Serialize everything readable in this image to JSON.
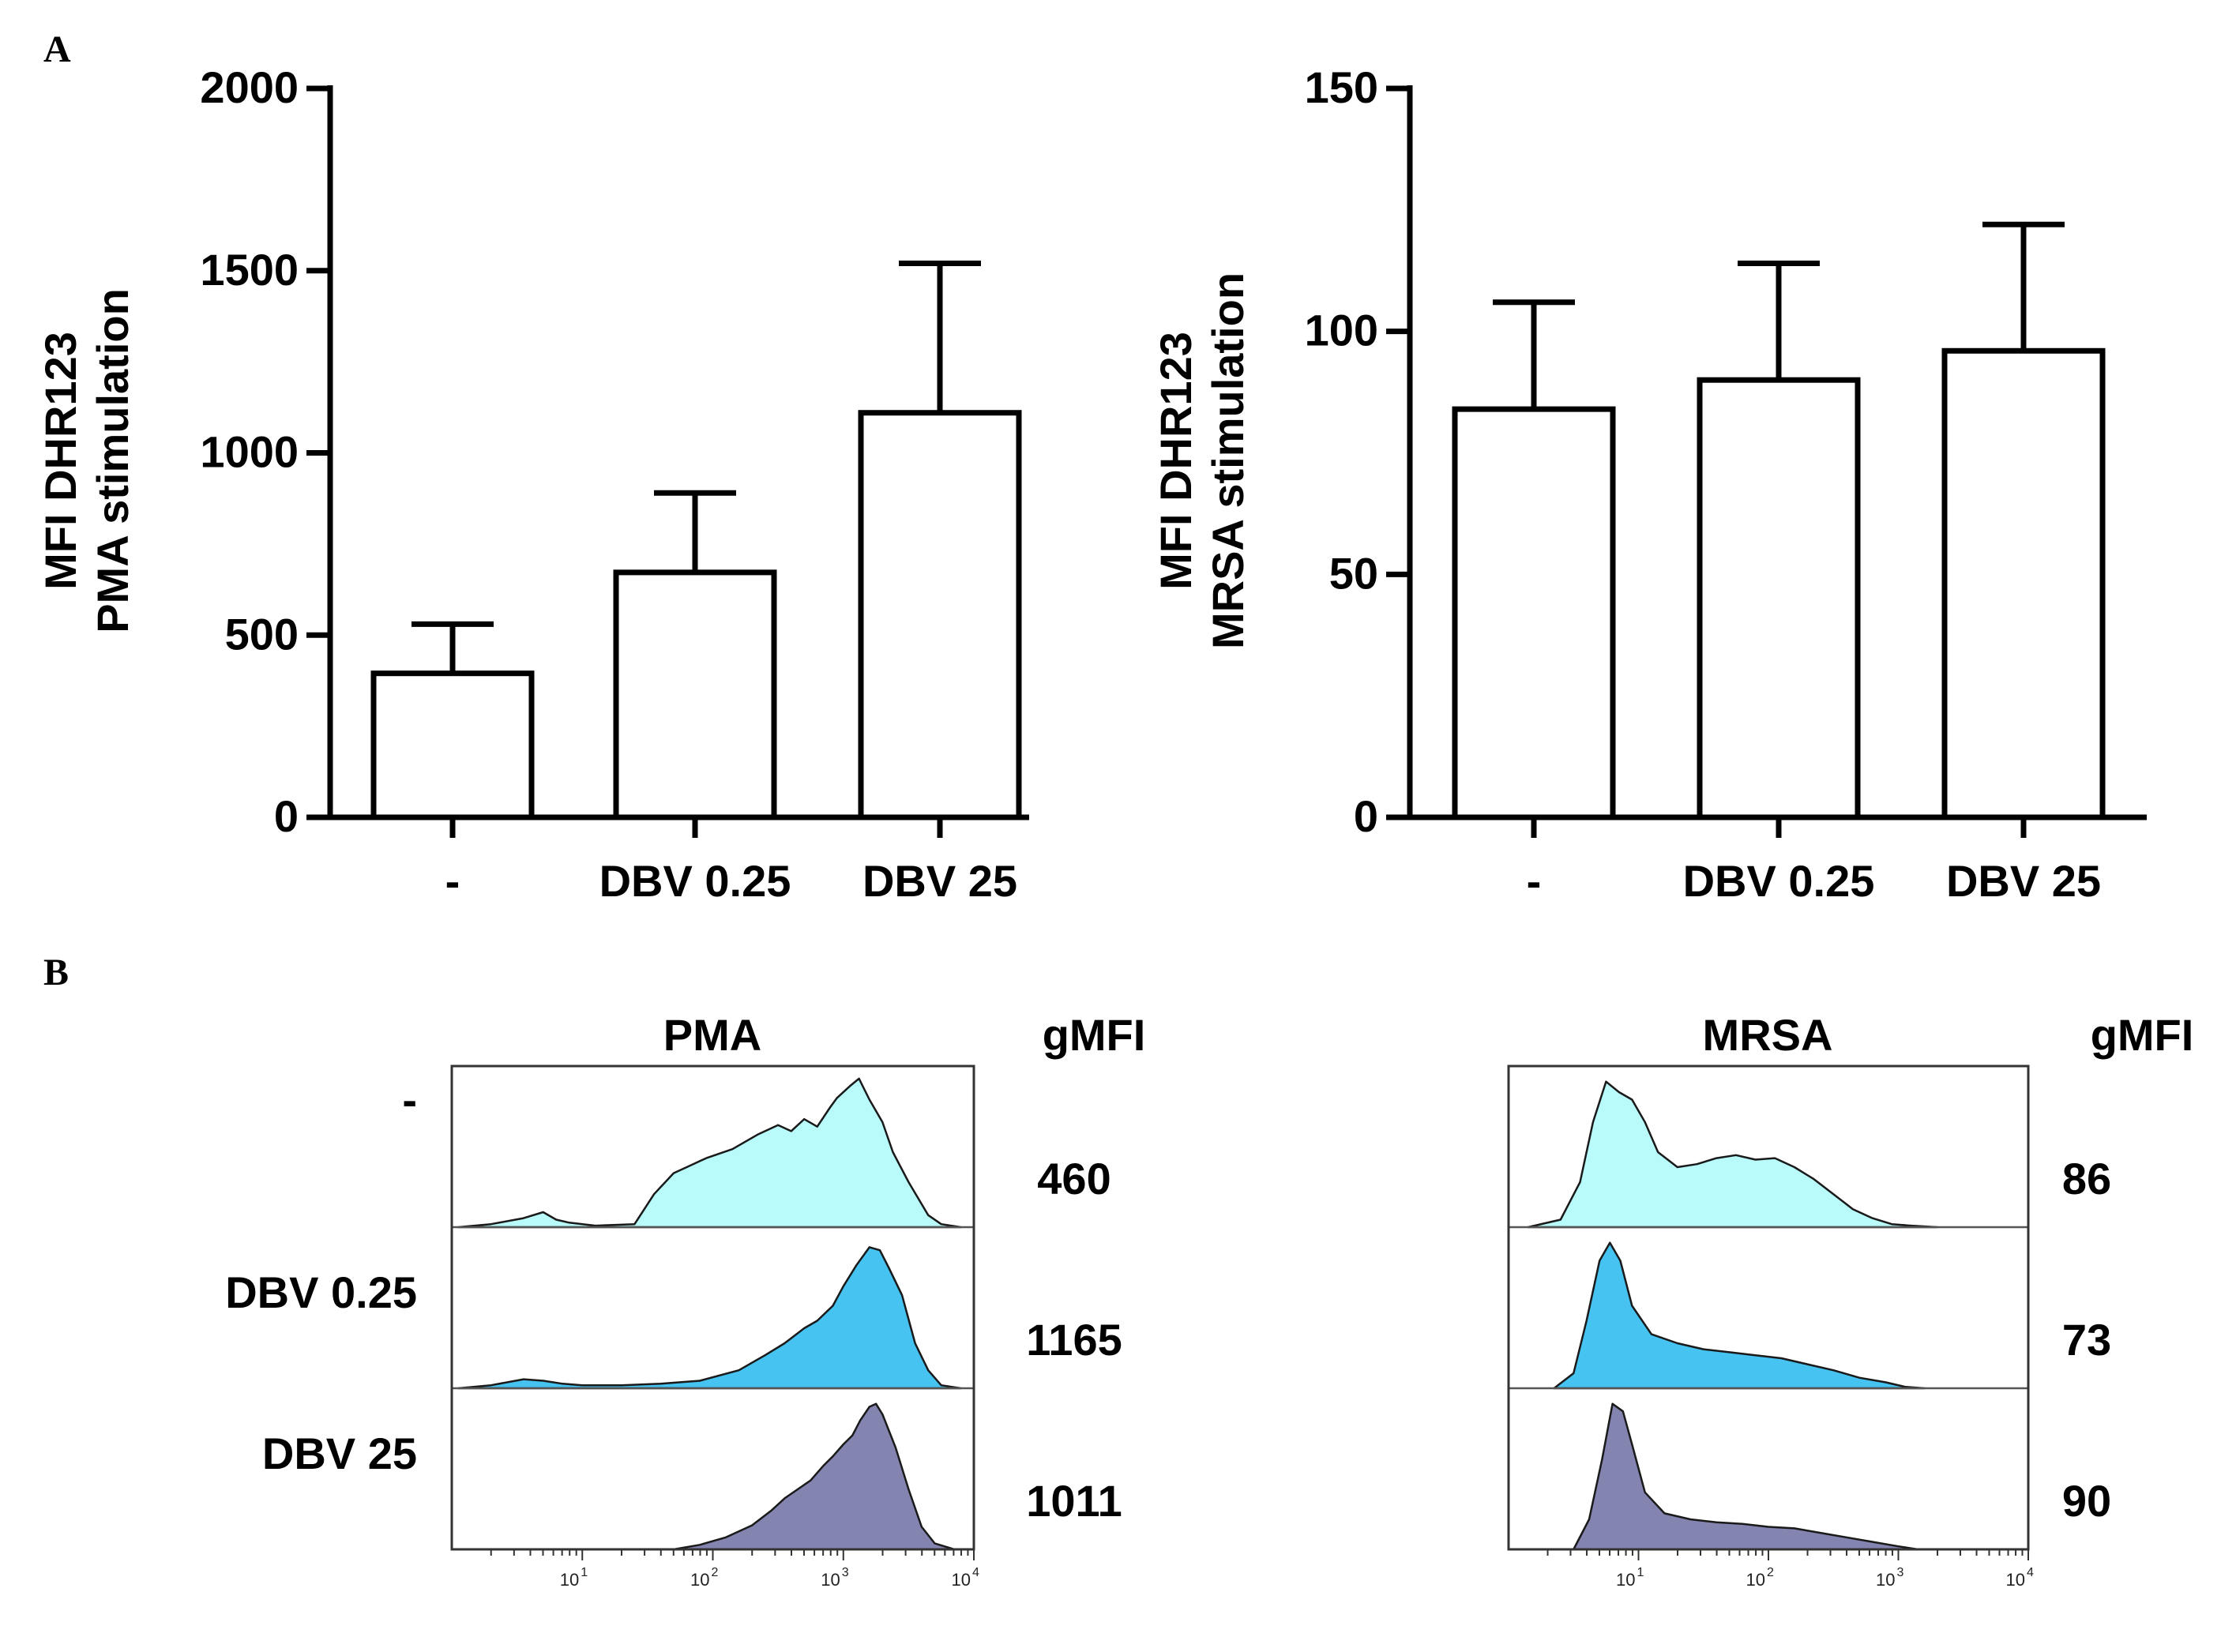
{
  "panels": {
    "a": "A",
    "b": "B"
  },
  "chart_data": [
    {
      "id": "A-left",
      "type": "bar",
      "title": "",
      "xlabel": "",
      "ylabel": [
        "MFI DHR123",
        "PMA stimulation"
      ],
      "categories": [
        "-",
        "DBV 0.25",
        "DBV 25"
      ],
      "values": [
        395,
        672,
        1110
      ],
      "errors": [
        135,
        218,
        410
      ],
      "ylim": [
        0,
        2000
      ],
      "yticks": [
        0,
        500,
        1000,
        1500,
        2000
      ],
      "yticklabels": [
        "0",
        "500",
        "1000",
        "1500",
        "2000"
      ]
    },
    {
      "id": "A-right",
      "type": "bar",
      "title": "",
      "xlabel": "",
      "ylabel": [
        "MFI DHR123",
        "MRSA stimulation"
      ],
      "categories": [
        "-",
        "DBV 0.25",
        "DBV 25"
      ],
      "values": [
        84,
        90,
        96
      ],
      "errors": [
        22,
        24,
        26
      ],
      "ylim": [
        0,
        150
      ],
      "yticks": [
        0,
        50,
        100,
        150
      ],
      "yticklabels": [
        "0",
        "50",
        "100",
        "150"
      ]
    },
    {
      "id": "B-left",
      "type": "area",
      "title": "PMA",
      "value_header": "gMFI",
      "xscale": "log",
      "xlim": [
        1,
        10000
      ],
      "xticks": [
        10,
        100,
        1000,
        10000
      ],
      "xticklabels": [
        [
          "10",
          "1"
        ],
        [
          "10",
          "2"
        ],
        [
          "10",
          "3"
        ],
        [
          "10",
          "4"
        ]
      ],
      "rows": [
        {
          "label": "-",
          "value": "460",
          "fill": "#b9fbfb",
          "log_x": [
            0.05,
            0.3,
            0.55,
            0.7,
            0.8,
            0.9,
            1.1,
            1.4,
            1.55,
            1.7,
            1.8,
            1.95,
            2.15,
            2.35,
            2.5,
            2.6,
            2.7,
            2.8,
            2.9,
            2.95,
            3.05,
            3.12,
            3.2,
            3.3,
            3.38,
            3.5,
            3.65,
            3.75,
            3.9
          ],
          "y": [
            0,
            0.02,
            0.06,
            0.1,
            0.05,
            0.03,
            0.01,
            0.02,
            0.22,
            0.36,
            0.4,
            0.46,
            0.52,
            0.62,
            0.68,
            0.64,
            0.72,
            0.67,
            0.8,
            0.86,
            0.94,
            0.99,
            0.85,
            0.7,
            0.5,
            0.3,
            0.08,
            0.02,
            0
          ]
        },
        {
          "label": "DBV 0.25",
          "value": "1165",
          "fill": "#46c3f1",
          "log_x": [
            0.05,
            0.3,
            0.55,
            0.7,
            0.85,
            1.0,
            1.3,
            1.6,
            1.9,
            2.2,
            2.4,
            2.55,
            2.7,
            2.8,
            2.92,
            3.0,
            3.1,
            3.2,
            3.28,
            3.35,
            3.45,
            3.55,
            3.65,
            3.75,
            3.9
          ],
          "y": [
            0,
            0.02,
            0.06,
            0.05,
            0.03,
            0.02,
            0.02,
            0.03,
            0.05,
            0.12,
            0.22,
            0.3,
            0.4,
            0.45,
            0.55,
            0.68,
            0.82,
            0.94,
            0.92,
            0.8,
            0.62,
            0.3,
            0.12,
            0.02,
            0
          ]
        },
        {
          "label": "DBV 25",
          "value": "1011",
          "fill": "#8484b0",
          "log_x": [
            1.7,
            1.9,
            2.1,
            2.3,
            2.45,
            2.55,
            2.65,
            2.75,
            2.85,
            2.92,
            3.0,
            3.07,
            3.13,
            3.2,
            3.25,
            3.3,
            3.4,
            3.5,
            3.6,
            3.7,
            3.85
          ],
          "y": [
            0,
            0.03,
            0.08,
            0.16,
            0.26,
            0.34,
            0.4,
            0.46,
            0.56,
            0.62,
            0.7,
            0.76,
            0.86,
            0.95,
            0.97,
            0.9,
            0.68,
            0.4,
            0.15,
            0.04,
            0
          ]
        }
      ]
    },
    {
      "id": "B-right",
      "type": "area",
      "title": "MRSA",
      "value_header": "gMFI",
      "xscale": "log",
      "xlim": [
        1,
        10000
      ],
      "xticks": [
        10,
        100,
        1000,
        10000
      ],
      "xticklabels": [
        [
          "10",
          "1"
        ],
        [
          "10",
          "2"
        ],
        [
          "10",
          "3"
        ],
        [
          "10",
          "4"
        ]
      ],
      "rows": [
        {
          "label": "",
          "value": "86",
          "fill": "#b9fbfb",
          "log_x": [
            0.15,
            0.4,
            0.55,
            0.65,
            0.75,
            0.85,
            0.95,
            1.05,
            1.15,
            1.3,
            1.45,
            1.6,
            1.75,
            1.9,
            2.05,
            2.2,
            2.35,
            2.5,
            2.65,
            2.8,
            2.95,
            3.1,
            3.3
          ],
          "y": [
            0,
            0.05,
            0.3,
            0.7,
            0.97,
            0.9,
            0.85,
            0.7,
            0.5,
            0.4,
            0.42,
            0.46,
            0.48,
            0.45,
            0.46,
            0.4,
            0.32,
            0.22,
            0.12,
            0.06,
            0.02,
            0.01,
            0
          ]
        },
        {
          "label": "",
          "value": "73",
          "fill": "#46c3f1",
          "log_x": [
            0.35,
            0.5,
            0.6,
            0.7,
            0.78,
            0.86,
            0.95,
            1.1,
            1.3,
            1.5,
            1.7,
            1.9,
            2.1,
            2.3,
            2.5,
            2.7,
            2.9,
            3.05,
            3.2
          ],
          "y": [
            0,
            0.1,
            0.45,
            0.85,
            0.97,
            0.85,
            0.55,
            0.36,
            0.3,
            0.26,
            0.24,
            0.22,
            0.2,
            0.16,
            0.12,
            0.07,
            0.04,
            0.01,
            0
          ]
        },
        {
          "label": "",
          "value": "90",
          "fill": "#8484b0",
          "log_x": [
            0.5,
            0.62,
            0.72,
            0.8,
            0.88,
            0.95,
            1.05,
            1.2,
            1.4,
            1.6,
            1.8,
            2.0,
            2.2,
            2.4,
            2.6,
            2.8,
            3.0,
            3.15
          ],
          "y": [
            0,
            0.2,
            0.6,
            0.97,
            0.92,
            0.7,
            0.38,
            0.24,
            0.2,
            0.18,
            0.17,
            0.15,
            0.14,
            0.11,
            0.08,
            0.05,
            0.02,
            0
          ]
        }
      ]
    }
  ]
}
